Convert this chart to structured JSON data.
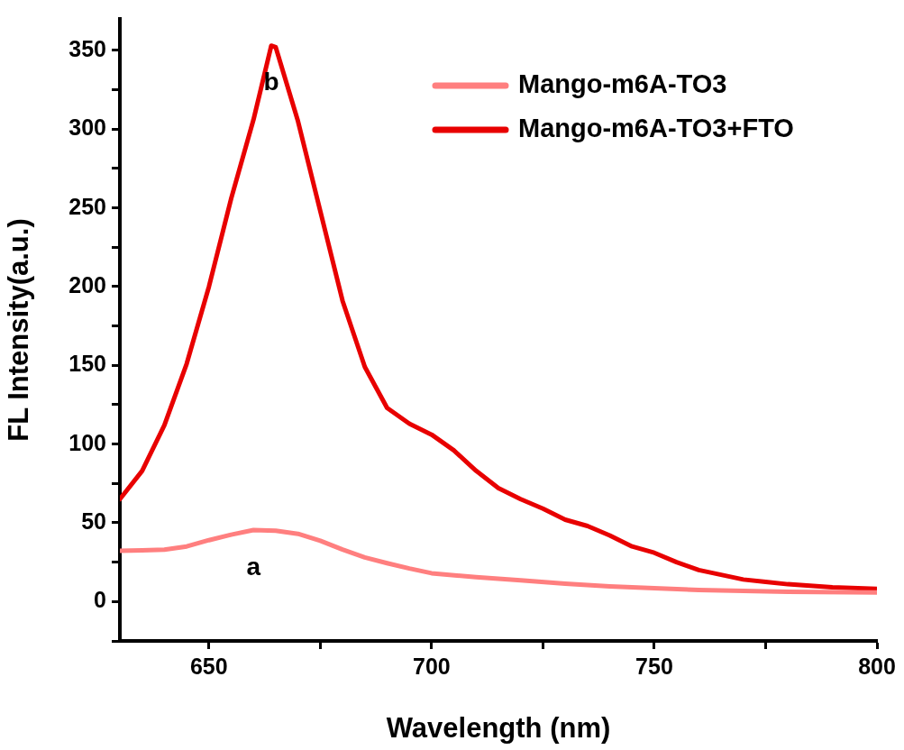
{
  "chart_data": {
    "type": "line",
    "xlabel": "Wavelength (nm)",
    "ylabel": "FL Intensity(a.u.)",
    "xlim": [
      630,
      800
    ],
    "ylim": [
      -25,
      370
    ],
    "xticks": [
      650,
      {
        "value": 675,
        "label": null
      },
      700,
      {
        "value": 725,
        "label": null
      },
      750,
      {
        "value": 775,
        "label": null
      },
      800
    ],
    "yticks": [
      {
        "value": -25,
        "label": null
      },
      0,
      {
        "value": 25,
        "label": null
      },
      50,
      {
        "value": 75,
        "label": null
      },
      100,
      {
        "value": 125,
        "label": null
      },
      150,
      {
        "value": 175,
        "label": null
      },
      200,
      {
        "value": 225,
        "label": null
      },
      250,
      {
        "value": 275,
        "label": null
      },
      300,
      {
        "value": 325,
        "label": null
      },
      350
    ],
    "grid": false,
    "legend": "top right",
    "marker": "none",
    "line_style": "solid",
    "series": [
      {
        "name": "Mango-m6A-TO3",
        "color": "#ff7f7f",
        "x": [
          630,
          635,
          640,
          645,
          650,
          655,
          660,
          665,
          670,
          675,
          680,
          685,
          690,
          695,
          700,
          710,
          720,
          730,
          740,
          750,
          760,
          780,
          800
        ],
        "values": [
          32.3,
          32.5,
          33,
          35,
          39,
          42.5,
          45.4,
          45,
          43,
          38.6,
          33,
          28,
          24.4,
          21,
          18,
          15.5,
          13.5,
          11.3,
          9.6,
          8.5,
          7.4,
          6.2,
          5.7
        ]
      },
      {
        "name": "Mango-m6A-TO3+FTO",
        "color": "#e80000",
        "x": [
          630,
          635,
          640,
          645,
          650,
          655,
          660,
          664,
          665,
          670,
          675,
          680,
          685,
          690,
          695,
          700,
          705,
          710,
          715,
          720,
          725,
          730,
          735,
          740,
          745,
          750,
          755,
          760,
          765,
          770,
          775,
          780,
          790,
          800
        ],
        "values": [
          65,
          83,
          112,
          151,
          200,
          256,
          306,
          353,
          352,
          305,
          248,
          191,
          149,
          123,
          113,
          106,
          96,
          83,
          72,
          65,
          59,
          52,
          48,
          42,
          35,
          31,
          25,
          20,
          17,
          14,
          12.5,
          11,
          9,
          8
        ]
      }
    ],
    "annotations": [
      "a",
      "b"
    ]
  }
}
